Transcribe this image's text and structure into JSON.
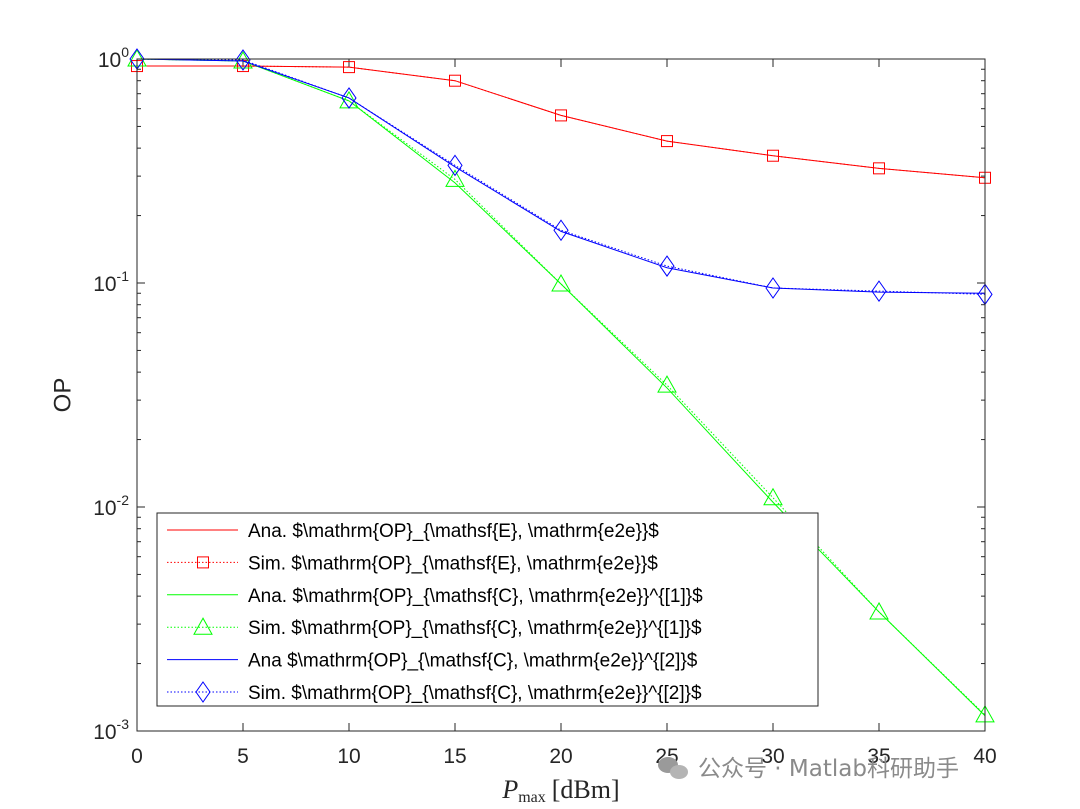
{
  "chart_data": {
    "type": "line",
    "yscale": "log",
    "x": [
      0,
      5,
      10,
      15,
      20,
      25,
      30,
      35,
      40
    ],
    "xlim": [
      0,
      40
    ],
    "ylim": [
      0.001,
      1
    ],
    "xticks": [
      0,
      5,
      10,
      15,
      20,
      25,
      30,
      35,
      40
    ],
    "yticks": [
      0.001,
      0.01,
      0.1,
      1
    ],
    "ytick_labels": [
      {
        "base": "10",
        "exp": "-3"
      },
      {
        "base": "10",
        "exp": "-2"
      },
      {
        "base": "10",
        "exp": "-1"
      },
      {
        "base": "10",
        "exp": "0"
      }
    ],
    "ylabel": "OP",
    "xlabel": {
      "main": "P",
      "sub": "max",
      "unit": "[dBm]"
    },
    "grid": false,
    "legend_position": "bottom-left",
    "series": [
      {
        "name": "Ana. $\\mathrm{OP}_{\\mathsf{E}, \\mathrm{e2e}}$",
        "color": "#ff0000",
        "style": "solid",
        "marker": "none",
        "values": [
          0.93,
          0.93,
          0.92,
          0.8,
          0.56,
          0.43,
          0.37,
          0.325,
          0.295
        ]
      },
      {
        "name": "Sim. $\\mathrm{OP}_{\\mathsf{E}, \\mathrm{e2e}}$",
        "color": "#ff0000",
        "style": "dotted",
        "marker": "square",
        "values": [
          0.93,
          0.93,
          0.92,
          0.8,
          0.56,
          0.43,
          0.37,
          0.325,
          0.295
        ]
      },
      {
        "name": "Ana. $\\mathrm{OP}_{\\mathsf{C}, \\mathrm{e2e}}^{[1]}$",
        "color": "#00ff00",
        "style": "solid",
        "marker": "none",
        "values": [
          1.0,
          0.98,
          0.65,
          0.28,
          0.099,
          0.034,
          0.0105,
          0.0034,
          0.00117
        ]
      },
      {
        "name": "Sim. $\\mathrm{OP}_{\\mathsf{C}, \\mathrm{e2e}}^{[1]}$",
        "color": "#00ff00",
        "style": "dotted",
        "marker": "triangle",
        "values": [
          1.0,
          0.98,
          0.65,
          0.29,
          0.099,
          0.035,
          0.011,
          0.0034,
          0.00118
        ]
      },
      {
        "name": "Ana $\\mathrm{OP}_{\\mathsf{C}, \\mathrm{e2e}}^{[2]}$",
        "color": "#0000ff",
        "style": "solid",
        "marker": "none",
        "values": [
          1.0,
          0.98,
          0.67,
          0.33,
          0.17,
          0.117,
          0.095,
          0.091,
          0.09
        ]
      },
      {
        "name": "Sim. $\\mathrm{OP}_{\\mathsf{C}, \\mathrm{e2e}}^{[2]}$",
        "color": "#0000ff",
        "style": "dotted",
        "marker": "diamond",
        "values": [
          1.0,
          0.99,
          0.67,
          0.335,
          0.172,
          0.119,
          0.095,
          0.092,
          0.089
        ]
      }
    ]
  },
  "watermark": "公众号 · Matlab科研助手"
}
